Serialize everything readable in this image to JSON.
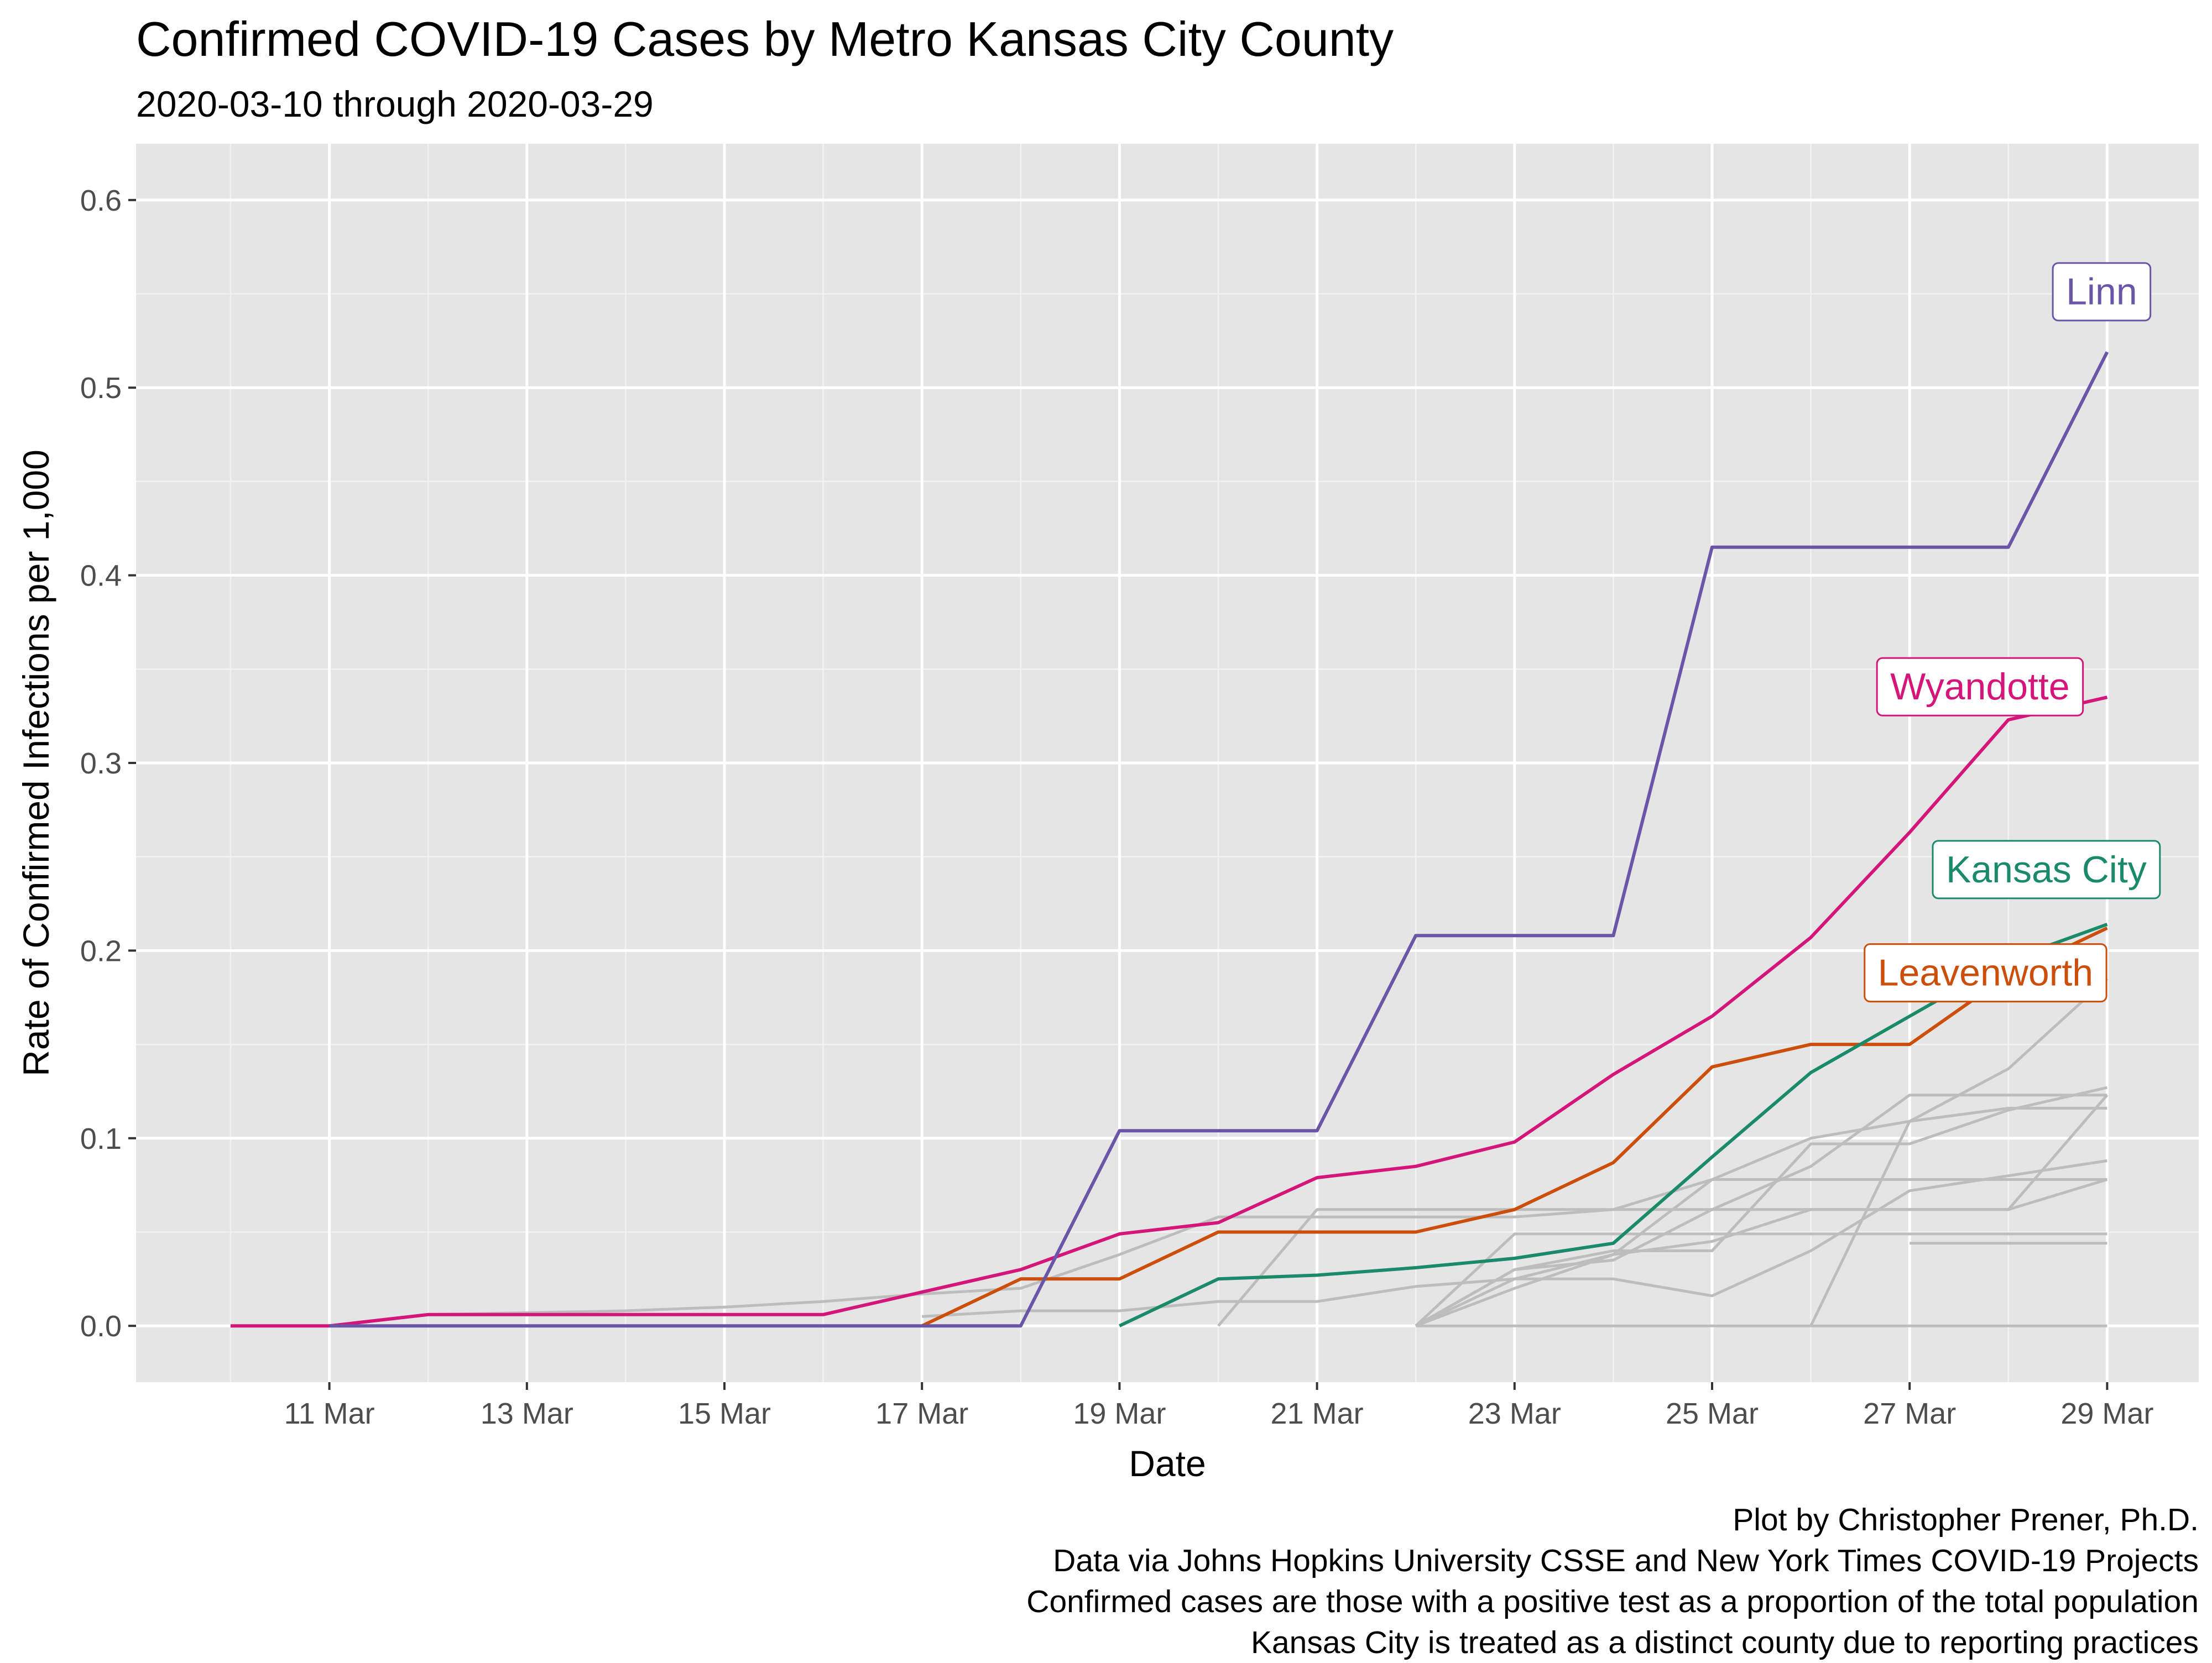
{
  "chart_data": {
    "type": "line",
    "title": "Confirmed COVID-19 Cases by Metro Kansas City County",
    "subtitle": "2020-03-10 through 2020-03-29",
    "xlabel": "Date",
    "ylabel": "Rate of Confirmed Infections per 1,000",
    "x": [
      "2020-03-10",
      "2020-03-11",
      "2020-03-12",
      "2020-03-13",
      "2020-03-14",
      "2020-03-15",
      "2020-03-16",
      "2020-03-17",
      "2020-03-18",
      "2020-03-19",
      "2020-03-20",
      "2020-03-21",
      "2020-03-22",
      "2020-03-23",
      "2020-03-24",
      "2020-03-25",
      "2020-03-26",
      "2020-03-27",
      "2020-03-28",
      "2020-03-29"
    ],
    "x_ticks": [
      "11 Mar",
      "13 Mar",
      "15 Mar",
      "17 Mar",
      "19 Mar",
      "21 Mar",
      "23 Mar",
      "25 Mar",
      "27 Mar",
      "29 Mar"
    ],
    "y_ticks": [
      "0.0",
      "0.1",
      "0.2",
      "0.3",
      "0.4",
      "0.5",
      "0.6"
    ],
    "ylim": [
      -0.03,
      0.63
    ],
    "grid": true,
    "background_color": "#e5e5e5",
    "highlighted_series": [
      {
        "name": "Linn",
        "color": "#6a55a7",
        "values": [
          null,
          0,
          0,
          0,
          0,
          0,
          0,
          0,
          0,
          0.104,
          0.104,
          0.104,
          0.208,
          0.208,
          0.208,
          0.415,
          0.415,
          0.415,
          0.415,
          0.519
        ]
      },
      {
        "name": "Wyandotte",
        "color": "#d4167a",
        "values": [
          0,
          0,
          0.006,
          0.006,
          0.006,
          0.006,
          0.006,
          0.018,
          0.03,
          0.049,
          0.055,
          0.079,
          0.085,
          0.098,
          0.134,
          0.165,
          0.207,
          0.263,
          0.323,
          0.335
        ]
      },
      {
        "name": "Kansas City",
        "color": "#1b8a6b",
        "values": [
          null,
          null,
          null,
          null,
          null,
          null,
          null,
          null,
          null,
          0,
          0.025,
          0.027,
          0.031,
          0.036,
          0.044,
          0.09,
          0.135,
          0.165,
          0.195,
          0.214
        ]
      },
      {
        "name": "Leavenworth",
        "color": "#cc4e0b",
        "values": [
          null,
          null,
          null,
          null,
          null,
          null,
          null,
          0,
          0.025,
          0.025,
          0.05,
          0.05,
          0.05,
          0.062,
          0.087,
          0.138,
          0.15,
          0.15,
          0.187,
          0.212
        ]
      }
    ],
    "background_series_color": "#bdbdbd",
    "background_series": [
      {
        "values": [
          null,
          null,
          0.006,
          0.007,
          0.008,
          0.01,
          0.013,
          0.017,
          0.02,
          0.038,
          0.058,
          0.058,
          0.058,
          0.058,
          0.062,
          0.078,
          0.1,
          0.109,
          0.116,
          0.116
        ]
      },
      {
        "values": [
          null,
          null,
          null,
          null,
          null,
          null,
          null,
          0.005,
          0.008,
          0.008,
          0.013,
          0.013,
          0.021,
          0.025,
          0.025,
          0.016,
          0.04,
          0.072,
          0.08,
          0.088
        ]
      },
      {
        "values": [
          null,
          null,
          null,
          null,
          null,
          null,
          null,
          null,
          null,
          null,
          0,
          0.062,
          0.062,
          0.062,
          0.062,
          0.062,
          0.062,
          0.062,
          0.062,
          0.123
        ]
      },
      {
        "values": [
          null,
          null,
          null,
          null,
          null,
          null,
          null,
          null,
          null,
          null,
          null,
          null,
          0,
          0.02,
          0.038,
          0.045,
          0.062,
          0.062,
          0.062,
          0.078
        ]
      },
      {
        "values": [
          null,
          null,
          null,
          null,
          null,
          null,
          null,
          null,
          null,
          null,
          null,
          null,
          0,
          0.025,
          0.038,
          0.078,
          0.078,
          0.078,
          0.078,
          0.078
        ]
      },
      {
        "values": [
          null,
          null,
          null,
          null,
          null,
          null,
          null,
          null,
          null,
          null,
          null,
          null,
          0,
          0.03,
          0.04,
          0.04,
          0.097,
          0.097,
          0.115,
          0.127
        ]
      },
      {
        "values": [
          null,
          null,
          null,
          null,
          null,
          null,
          null,
          null,
          null,
          null,
          null,
          null,
          0,
          0.049,
          0.049,
          0.049,
          0.049,
          0.049,
          0.049,
          0.049
        ]
      },
      {
        "values": [
          null,
          null,
          null,
          null,
          null,
          null,
          null,
          null,
          null,
          null,
          null,
          null,
          0,
          0.03,
          0.035,
          0.062,
          0.085,
          0.123,
          0.123,
          0.123
        ]
      },
      {
        "values": [
          null,
          null,
          null,
          null,
          null,
          null,
          null,
          null,
          null,
          null,
          null,
          null,
          null,
          null,
          null,
          null,
          0,
          0.109,
          0.137,
          0.185
        ]
      },
      {
        "values": [
          null,
          null,
          null,
          null,
          null,
          null,
          null,
          null,
          null,
          null,
          null,
          null,
          null,
          null,
          null,
          null,
          null,
          0.044,
          0.044,
          0.044
        ]
      },
      {
        "values": [
          null,
          null,
          null,
          null,
          null,
          null,
          null,
          null,
          null,
          null,
          null,
          null,
          0,
          0,
          0,
          0,
          0,
          0,
          0,
          0
        ]
      }
    ]
  },
  "caption_lines": [
    "Plot by Christopher Prener, Ph.D.",
    "Data via Johns Hopkins University CSSE and New York Times COVID-19 Projects",
    "Confirmed cases are those with a positive test as a proportion of the total population",
    "Kansas City is treated as a distinct county due to reporting practices"
  ]
}
